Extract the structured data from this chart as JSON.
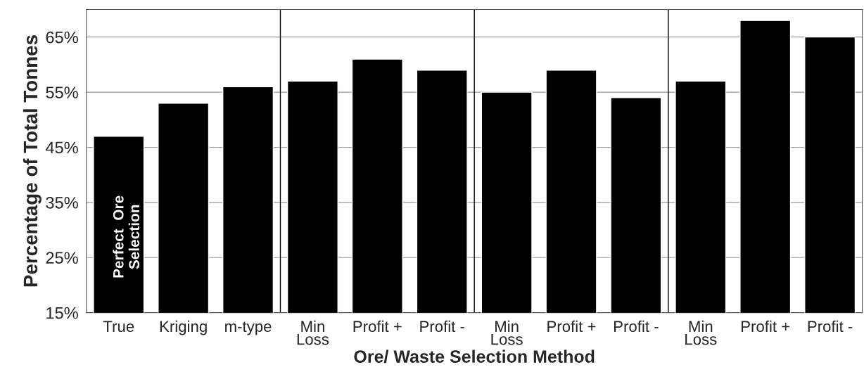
{
  "chart_data": {
    "type": "bar",
    "xlabel": "Ore/ Waste Selection Method",
    "ylabel": "Percentage of Total Tonnes",
    "categories": [
      "True",
      "Kriging",
      "m-type",
      "Min\nLoss",
      "Profit +",
      "Profit -",
      "Min\nLoss",
      "Profit +",
      "Profit -",
      "Min\nLoss",
      "Profit +",
      "Profit -"
    ],
    "values": [
      47,
      53,
      56,
      57,
      61,
      59,
      55,
      59,
      54,
      57,
      68,
      65
    ],
    "color": "#000000",
    "ylim": [
      15,
      70
    ],
    "yticks": [
      {
        "value": 15,
        "label": "15%"
      },
      {
        "value": 25,
        "label": "25%"
      },
      {
        "value": 35,
        "label": "35%"
      },
      {
        "value": 45,
        "label": "45%"
      },
      {
        "value": 55,
        "label": "55%"
      },
      {
        "value": 65,
        "label": "65%"
      }
    ],
    "grid": "y",
    "annotations": [
      "Perfect  Ore\nSelection"
    ]
  }
}
